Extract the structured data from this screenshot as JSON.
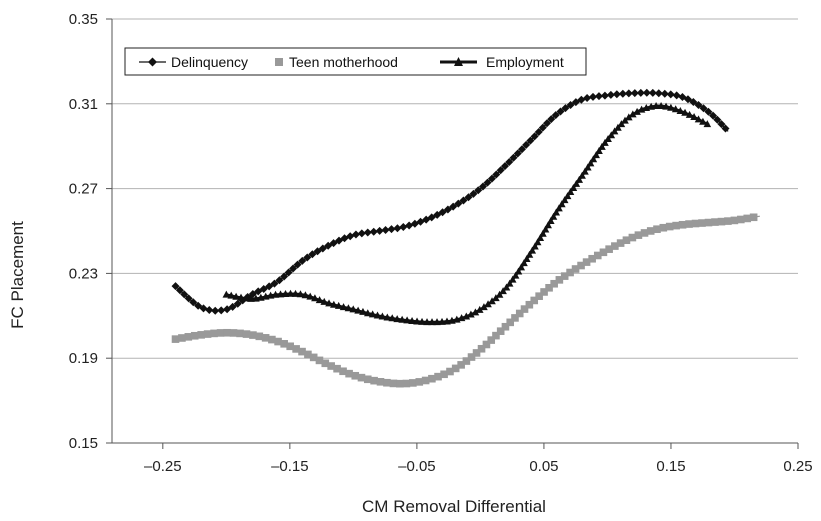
{
  "chart_data": {
    "type": "line",
    "title": "",
    "xlabel": "CM Removal Differential",
    "ylabel": "FC Placement",
    "xlim": [
      -0.29,
      0.25
    ],
    "ylim": [
      0.15,
      0.35
    ],
    "xticks": [
      -0.25,
      -0.15,
      -0.05,
      0.05,
      0.15,
      0.25
    ],
    "xtick_labels": [
      "–0.25",
      "–0.15",
      "–0.05",
      "0.05",
      "0.15",
      "0.25"
    ],
    "yticks": [
      0.15,
      0.19,
      0.23,
      0.27,
      0.31,
      0.35
    ],
    "ytick_labels": [
      "0.15",
      "0.19",
      "0.23",
      "0.27",
      "0.31",
      "0.35"
    ],
    "grid": "horizontal",
    "legend_position": "top-left",
    "series": [
      {
        "name": "Delinquency",
        "marker": "diamond",
        "color": "#111111",
        "x": [
          -0.24,
          -0.22,
          -0.2,
          -0.18,
          -0.16,
          -0.14,
          -0.12,
          -0.1,
          -0.08,
          -0.06,
          -0.04,
          -0.02,
          0.0,
          0.02,
          0.04,
          0.06,
          0.08,
          0.1,
          0.12,
          0.14,
          0.16,
          0.18,
          0.195
        ],
        "y": [
          0.224,
          0.214,
          0.213,
          0.22,
          0.226,
          0.236,
          0.243,
          0.248,
          0.25,
          0.252,
          0.256,
          0.262,
          0.27,
          0.281,
          0.293,
          0.305,
          0.312,
          0.314,
          0.315,
          0.315,
          0.313,
          0.306,
          0.297
        ]
      },
      {
        "name": "Teen motherhood",
        "marker": "square",
        "color": "#999999",
        "x": [
          -0.24,
          -0.22,
          -0.2,
          -0.18,
          -0.16,
          -0.14,
          -0.12,
          -0.1,
          -0.08,
          -0.06,
          -0.04,
          -0.02,
          0.0,
          0.02,
          0.04,
          0.06,
          0.08,
          0.1,
          0.12,
          0.14,
          0.16,
          0.18,
          0.2,
          0.22
        ],
        "y": [
          0.199,
          0.201,
          0.202,
          0.201,
          0.198,
          0.193,
          0.187,
          0.182,
          0.179,
          0.178,
          0.18,
          0.185,
          0.194,
          0.205,
          0.216,
          0.226,
          0.234,
          0.241,
          0.247,
          0.251,
          0.253,
          0.254,
          0.255,
          0.257
        ]
      },
      {
        "name": "Employment",
        "marker": "triangle",
        "color": "#111111",
        "x": [
          -0.2,
          -0.18,
          -0.16,
          -0.14,
          -0.12,
          -0.1,
          -0.08,
          -0.06,
          -0.04,
          -0.02,
          0.0,
          0.02,
          0.04,
          0.06,
          0.08,
          0.1,
          0.12,
          0.14,
          0.16,
          0.18
        ],
        "y": [
          0.22,
          0.218,
          0.22,
          0.22,
          0.216,
          0.213,
          0.21,
          0.208,
          0.207,
          0.208,
          0.213,
          0.223,
          0.24,
          0.259,
          0.276,
          0.293,
          0.305,
          0.309,
          0.306,
          0.3
        ]
      }
    ]
  }
}
